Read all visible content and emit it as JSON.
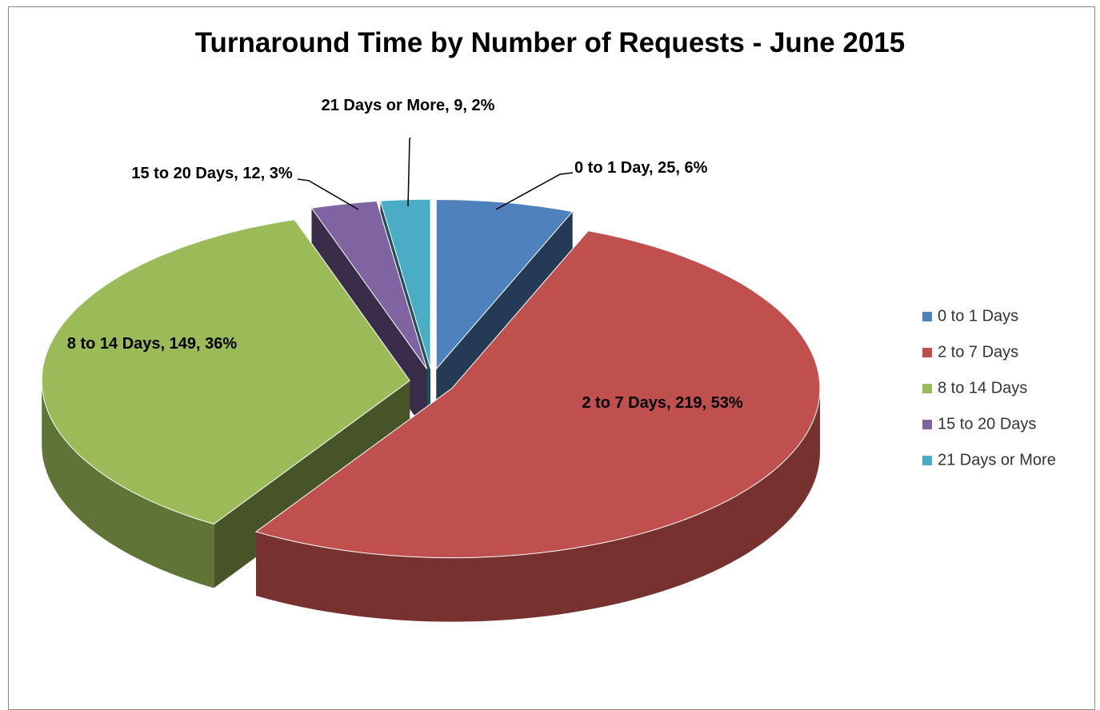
{
  "chart_data": {
    "type": "pie3d",
    "title": "Turnaround Time by Number of Requests - June 2015",
    "categories": [
      "0 to 1 Days",
      "2 to 7 Days",
      "8 to 14 Days",
      "15 to 20 Days",
      "21 Days or More"
    ],
    "values": [
      25,
      219,
      149,
      12,
      9
    ],
    "value_labels": [
      "0 to 1 Day, 25, 6%",
      "2 to 7 Days, 219, 53%",
      "8 to 14 Days, 149, 36%",
      "15 to 20 Days, 12, 3%",
      "21 Days or More, 9, 2%"
    ],
    "colors": [
      "#4f81bd",
      "#c0504d",
      "#9bbb59",
      "#8064a2",
      "#4bacc6"
    ],
    "legend": "right"
  }
}
